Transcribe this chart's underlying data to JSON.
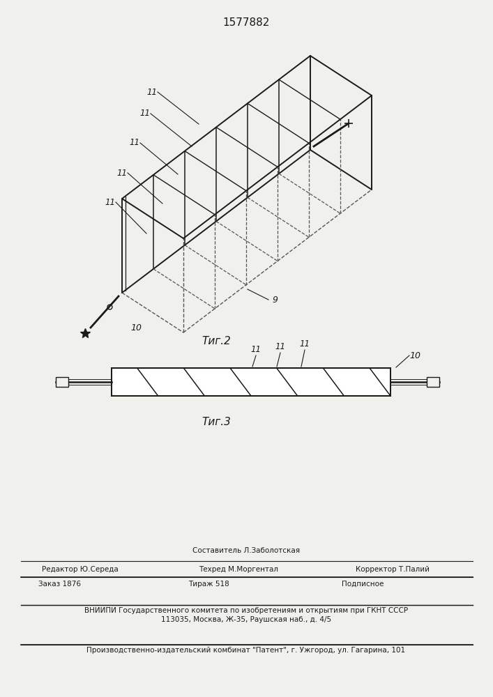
{
  "title_number": "1577882",
  "fig2_caption": "Τиг.2",
  "fig3_caption": "Τиг.3",
  "bg_color": "#f0f0ec",
  "line_color": "#1a1a1a",
  "dashed_color": "#555555",
  "footer": {
    "sestavitel": "Составитель Л.Заболотская",
    "redaktor": "Редактор Ю.Середа",
    "tehred": "Техред М.Моргентал",
    "korrektor": "Корректор Т.Палий",
    "zakaz": "Заказ 1876",
    "tirazh": "Тираж 518",
    "podpisnoe": "Подписное",
    "vniipil1": "ВНИИПИ Государственного комитета по изобретениям и открытиям при ГКНТ СССР",
    "vniipil2": "113035, Москва, Ж-35, Раушская наб., д. 4/5",
    "proizvod": "Производственно-издательский комбинат \"Патент\", г. Ужгород, ул. Гагарина, 101"
  }
}
